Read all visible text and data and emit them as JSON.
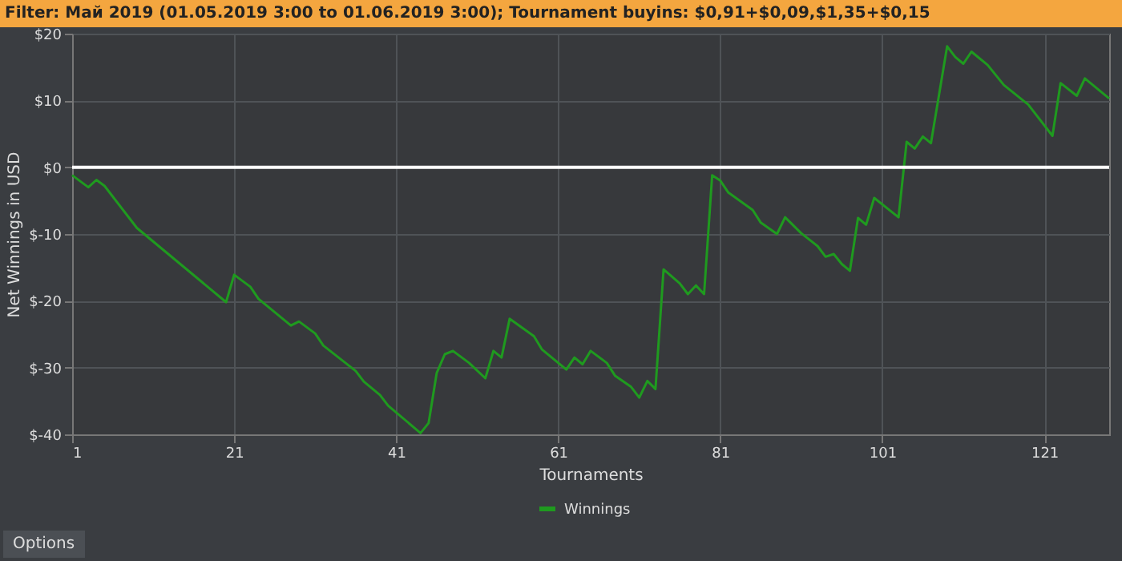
{
  "chart_data": {
    "type": "line",
    "title": "Filter: Май 2019 (01.05.2019 3:00 to 01.06.2019 3:00); Tournament buyins: $0,91+$0,09,$1,35+$0,15",
    "xlabel": "Tournaments",
    "ylabel": "Net Winnings in USD",
    "series": [
      {
        "name": "Winnings",
        "color": "#1f9a1f",
        "x": [
          1,
          3,
          4,
          5,
          9,
          20,
          21,
          23,
          24,
          28,
          29,
          31,
          32,
          36,
          37,
          39,
          40,
          44,
          45,
          46,
          47,
          48,
          50,
          52,
          53,
          54,
          55,
          58,
          59,
          62,
          63,
          64,
          65,
          67,
          68,
          70,
          71,
          72,
          73,
          74,
          76,
          77,
          78,
          79,
          80,
          81,
          82,
          85,
          86,
          88,
          89,
          91,
          93,
          94,
          95,
          96,
          97,
          98,
          99,
          100,
          103,
          104,
          105,
          106,
          107,
          109,
          110,
          111,
          112,
          114,
          116,
          119,
          122,
          123,
          125,
          126,
          129
        ],
        "values": [
          -1.2,
          -3,
          -1.9,
          -2.8,
          -9.1,
          -20.2,
          -16.1,
          -17.9,
          -19.7,
          -23.7,
          -23.1,
          -24.9,
          -26.7,
          -30.5,
          -32.1,
          -34.1,
          -35.7,
          -39.8,
          -38.3,
          -30.8,
          -28,
          -27.5,
          -29.3,
          -31.6,
          -27.5,
          -28.5,
          -22.7,
          -25.3,
          -27.3,
          -30.3,
          -28.5,
          -29.5,
          -27.5,
          -29.3,
          -31.2,
          -32.9,
          -34.5,
          -32,
          -33.2,
          -15.3,
          -17.4,
          -19,
          -17.7,
          -19,
          -1.2,
          -2,
          -3.8,
          -6.4,
          -8.3,
          -10,
          -7.5,
          -9.9,
          -11.8,
          -13.4,
          -13,
          -14.5,
          -15.5,
          -7.6,
          -8.6,
          -4.6,
          -7.5,
          3.8,
          2.8,
          4.6,
          3.6,
          18.1,
          16.5,
          15.5,
          17.3,
          15.3,
          12.3,
          9.4,
          4.7,
          12.6,
          10.7,
          13.3,
          10.3
        ]
      }
    ],
    "xlim": [
      1,
      129
    ],
    "xticks": [
      1,
      21,
      41,
      61,
      81,
      101,
      121
    ],
    "ylim": [
      -40,
      20
    ],
    "yticks": [
      {
        "value": -40,
        "label": "$-40"
      },
      {
        "value": -30,
        "label": "$-30"
      },
      {
        "value": -20,
        "label": "$-20"
      },
      {
        "value": -10,
        "label": "$-10"
      },
      {
        "value": 0,
        "label": "$0"
      },
      {
        "value": 10,
        "label": "$10"
      },
      {
        "value": 20,
        "label": "$20"
      }
    ],
    "ref_lines": [
      {
        "axis": "y",
        "value": 0,
        "color": "#ffffff"
      }
    ],
    "annotations": [
      "Options"
    ],
    "grid": true,
    "legend": "bottom",
    "marker": "none",
    "line_style": "solid"
  }
}
